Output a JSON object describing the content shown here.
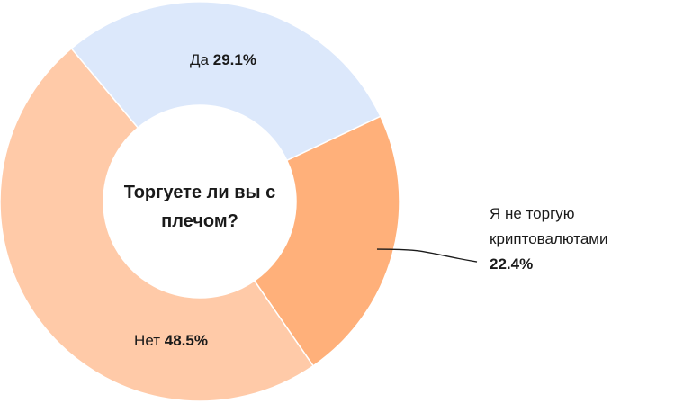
{
  "chart_data": {
    "type": "donut",
    "title": "Торгуете ли вы с плечом?",
    "categories": [
      "Да",
      "Я не торгую криптовалютами",
      "Нет"
    ],
    "values": [
      29.1,
      22.4,
      48.5
    ],
    "value_labels": [
      "29.1%",
      "22.4%",
      "48.5%"
    ],
    "colors": [
      "#dce8fb",
      "#ffb07a",
      "#ffcaa8"
    ]
  }
}
